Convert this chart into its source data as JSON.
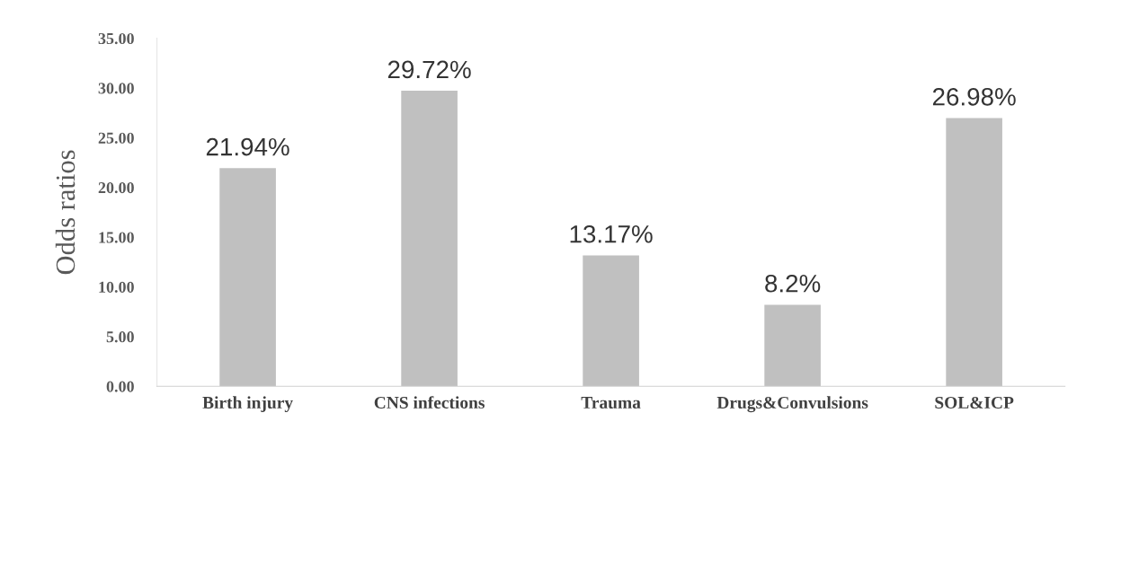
{
  "chart_data": {
    "type": "bar",
    "ylabel": "Odds ratios",
    "categories": [
      "Birth injury",
      "CNS infections",
      "Trauma",
      "Drugs&Convulsions",
      "SOL&ICP"
    ],
    "values": [
      21.94,
      29.72,
      13.17,
      8.2,
      26.98
    ],
    "value_labels": [
      "21.94%",
      "29.72%",
      "13.17%",
      "8.2%",
      "26.98%"
    ],
    "color": "#c0c0c0",
    "ylim": [
      0,
      35
    ],
    "yticks": [
      {
        "value": 0,
        "label": "0.00"
      },
      {
        "value": 5,
        "label": "5.00"
      },
      {
        "value": 10,
        "label": "10.00"
      },
      {
        "value": 15,
        "label": "15.00"
      },
      {
        "value": 20,
        "label": "20.00"
      },
      {
        "value": 25,
        "label": "25.00"
      },
      {
        "value": 30,
        "label": "30.00"
      },
      {
        "value": 35,
        "label": "35.00"
      }
    ],
    "grid": false,
    "legend": false
  }
}
